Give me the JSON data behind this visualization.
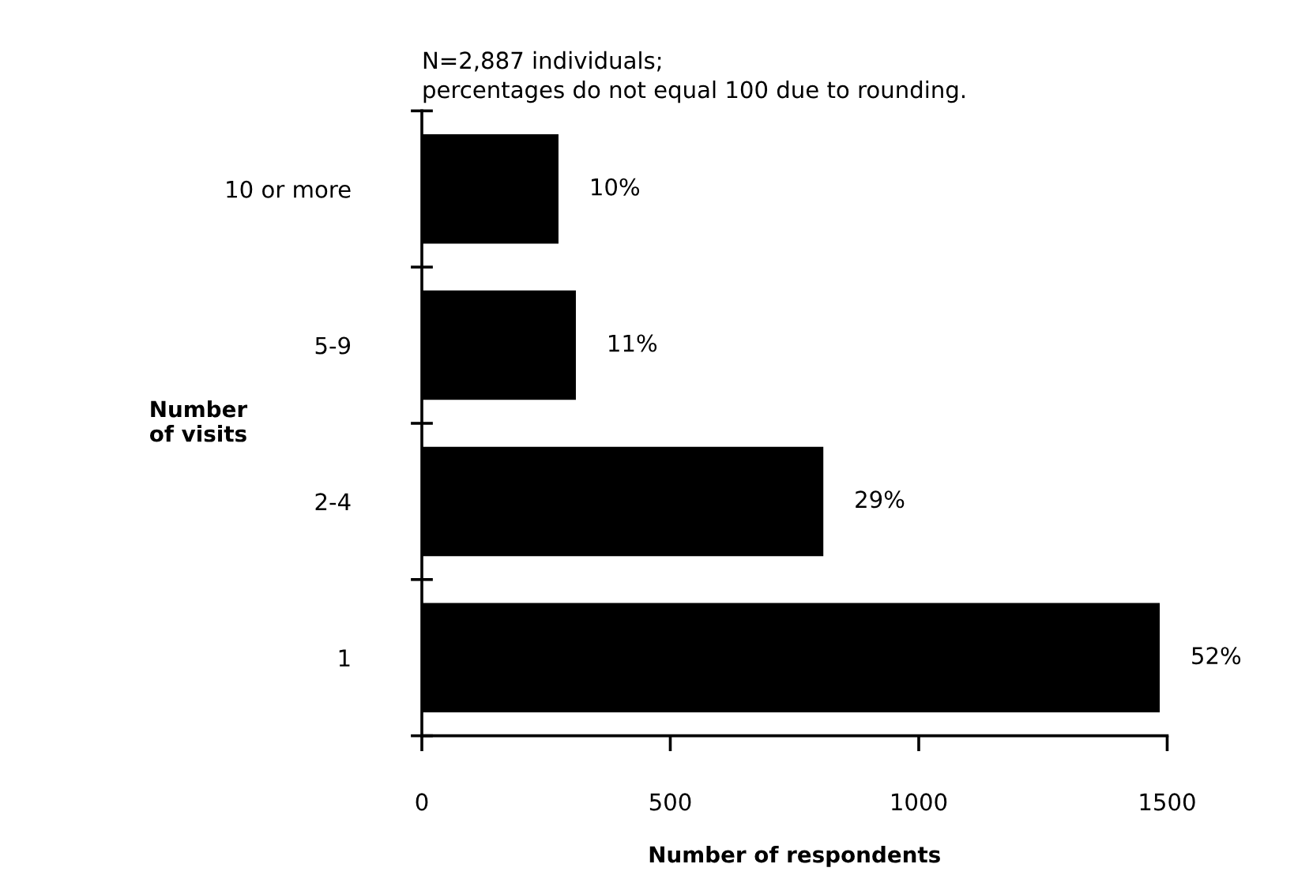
{
  "chart_data": {
    "type": "bar",
    "orientation": "horizontal",
    "categories": [
      "10 or more",
      "5-9",
      "2-4",
      "1"
    ],
    "values": [
      275,
      310,
      808,
      1485
    ],
    "color": "#000000",
    "xlim": [
      0,
      1500
    ],
    "xticks": [
      0,
      500,
      1000,
      1500
    ],
    "xlabel": "Number of respondents",
    "ylabel": "Number\nof visits",
    "annotations": [
      "N=2,887 individuals;\npercentages do not equal 100 due to rounding.",
      {
        "text": "10%",
        "x": 275,
        "y": "10 or more"
      },
      {
        "text": "11%",
        "x": 310,
        "y": "5-9"
      },
      {
        "text": "29%",
        "x": 808,
        "y": "2-4"
      },
      {
        "text": "52%",
        "x": 1485,
        "y": "1"
      }
    ],
    "grid": false,
    "legend": false
  }
}
